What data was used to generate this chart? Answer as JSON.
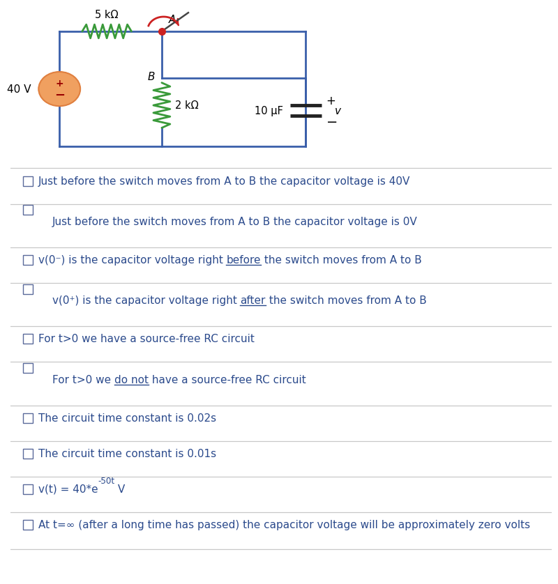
{
  "bg_color": "#ffffff",
  "text_color": "#2b4a8c",
  "checkbox_color": "#4a5a8c",
  "divider_color": "#c8c8c8",
  "circuit_wire_color": "#3a5faa",
  "resistor_color_5k": "#3a9a3a",
  "resistor_color_2k": "#3a9a3a",
  "switch_color": "#cc2222",
  "source_fill_color": "#f0a060",
  "source_border_color": "#e08040",
  "circuit": {
    "voltage_label": "40 V",
    "res5k_label": "5 kΩ",
    "res2k_label": "2 kΩ",
    "cap_label": "10 μF",
    "switch_a_label": "A",
    "switch_b_label": "B",
    "v_label": "v"
  },
  "options": [
    {
      "checkbox_inline": true,
      "text_parts": [
        {
          "text": "Just before the switch moves from A to B the capacitor voltage is 40V",
          "underline": false,
          "super": false
        }
      ]
    },
    {
      "checkbox_inline": false,
      "text_parts": [
        {
          "text": "Just before the switch moves from A to B the capacitor voltage is 0V",
          "underline": false,
          "super": false
        }
      ]
    },
    {
      "checkbox_inline": true,
      "text_parts": [
        {
          "text": "v(0⁻) is the capacitor voltage right ",
          "underline": false,
          "super": false
        },
        {
          "text": "before",
          "underline": true,
          "super": false
        },
        {
          "text": " the switch moves from A to B",
          "underline": false,
          "super": false
        }
      ]
    },
    {
      "checkbox_inline": false,
      "text_parts": [
        {
          "text": "v(0⁺) is the capacitor voltage right ",
          "underline": false,
          "super": false
        },
        {
          "text": "after",
          "underline": true,
          "super": false
        },
        {
          "text": " the switch moves from A to B",
          "underline": false,
          "super": false
        }
      ]
    },
    {
      "checkbox_inline": true,
      "text_parts": [
        {
          "text": "For t>0 we have a source-free RC circuit",
          "underline": false,
          "super": false
        }
      ]
    },
    {
      "checkbox_inline": false,
      "text_parts": [
        {
          "text": "For t>0 we ",
          "underline": false,
          "super": false
        },
        {
          "text": "do not",
          "underline": true,
          "super": false
        },
        {
          "text": " have a source-free RC circuit",
          "underline": false,
          "super": false
        }
      ]
    },
    {
      "checkbox_inline": true,
      "text_parts": [
        {
          "text": "The circuit time constant is 0.02s",
          "underline": false,
          "super": false
        }
      ]
    },
    {
      "checkbox_inline": true,
      "text_parts": [
        {
          "text": "The circuit time constant is 0.01s",
          "underline": false,
          "super": false
        }
      ]
    },
    {
      "checkbox_inline": true,
      "text_parts": [
        {
          "text": "v(t) = 40*e",
          "underline": false,
          "super": false
        },
        {
          "text": "-50t",
          "underline": false,
          "super": true
        },
        {
          "text": " V",
          "underline": false,
          "super": false
        }
      ]
    },
    {
      "checkbox_inline": true,
      "text_parts": [
        {
          "text": "At t=∞ (after a long time has passed) the capacitor voltage will be approximately zero volts",
          "underline": false,
          "super": false
        }
      ]
    }
  ]
}
